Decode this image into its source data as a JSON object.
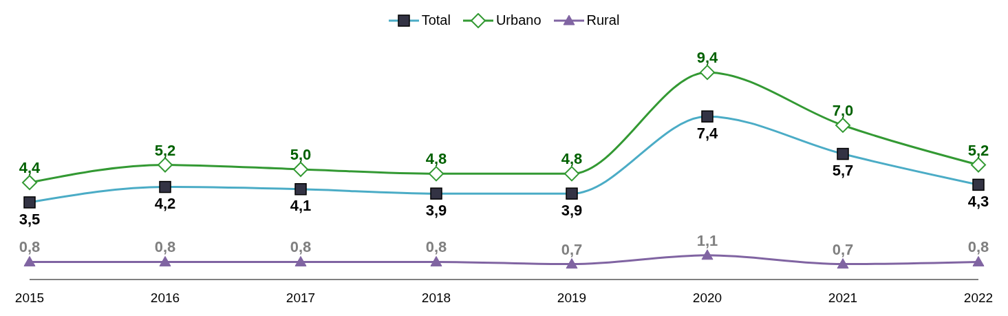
{
  "chart_data": {
    "type": "line",
    "categories": [
      "2015",
      "2016",
      "2017",
      "2018",
      "2019",
      "2020",
      "2021",
      "2022"
    ],
    "series": [
      {
        "name": "Total",
        "color": "#4bacc6",
        "marker": "square",
        "values": [
          3.5,
          4.2,
          4.1,
          3.9,
          3.9,
          7.4,
          5.7,
          4.3
        ],
        "value_labels": [
          "3,5",
          "4,2",
          "4,1",
          "3,9",
          "3,9",
          "7,4",
          "5,7",
          "4,3"
        ]
      },
      {
        "name": "Urbano",
        "color": "#339933",
        "marker": "diamond",
        "values": [
          4.4,
          5.2,
          5.0,
          4.8,
          4.8,
          9.4,
          7.0,
          5.2
        ],
        "value_labels": [
          "4,4",
          "5,2",
          "5,0",
          "4,8",
          "4,8",
          "9,4",
          "7,0",
          "5,2"
        ]
      },
      {
        "name": "Rural",
        "color": "#8064a2",
        "marker": "triangle",
        "values": [
          0.8,
          0.8,
          0.8,
          0.8,
          0.7,
          1.1,
          0.7,
          0.8
        ],
        "value_labels": [
          "0,8",
          "0,8",
          "0,8",
          "0,8",
          "0,7",
          "1,1",
          "0,7",
          "0,8"
        ]
      }
    ],
    "legend": "top",
    "tick_labels": "x"
  }
}
